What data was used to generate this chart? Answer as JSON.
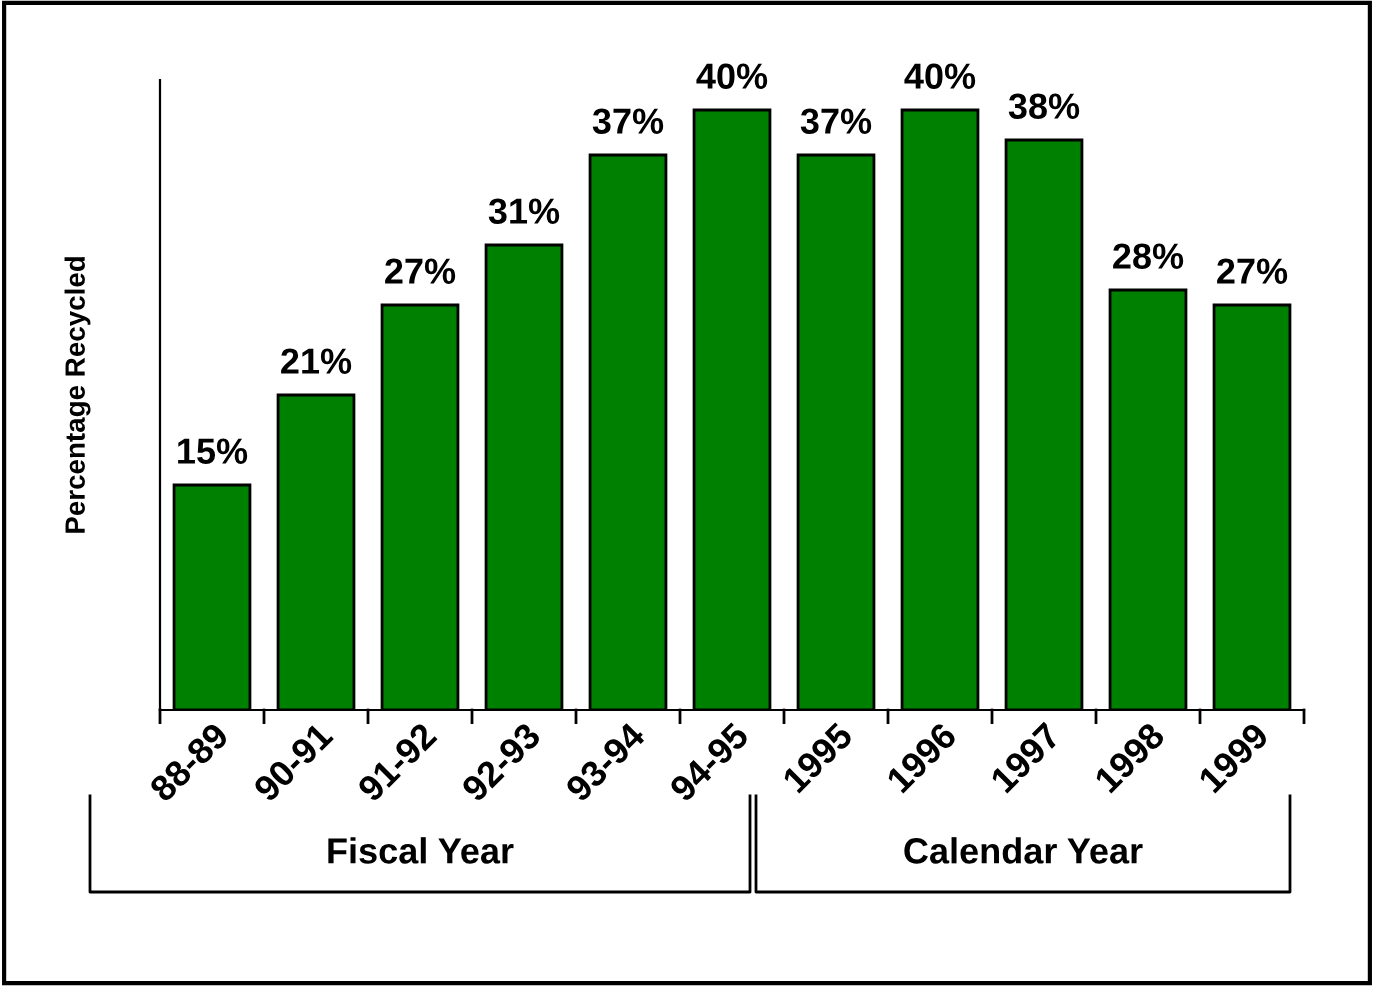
{
  "chart_data": {
    "type": "bar",
    "ylabel": "Percentage Recycled",
    "categories": [
      "88-89",
      "90-91",
      "91-92",
      "92-93",
      "93-94",
      "94-95",
      "1995",
      "1996",
      "1997",
      "1998",
      "1999"
    ],
    "values": [
      15,
      21,
      27,
      31,
      37,
      40,
      37,
      40,
      38,
      28,
      27
    ],
    "value_labels": [
      "15%",
      "21%",
      "27%",
      "31%",
      "37%",
      "40%",
      "37%",
      "40%",
      "38%",
      "28%",
      "27%"
    ],
    "color": "#008000",
    "grid": false,
    "legend": false,
    "annotations": [
      "Fiscal Year",
      "Calendar Year"
    ]
  }
}
